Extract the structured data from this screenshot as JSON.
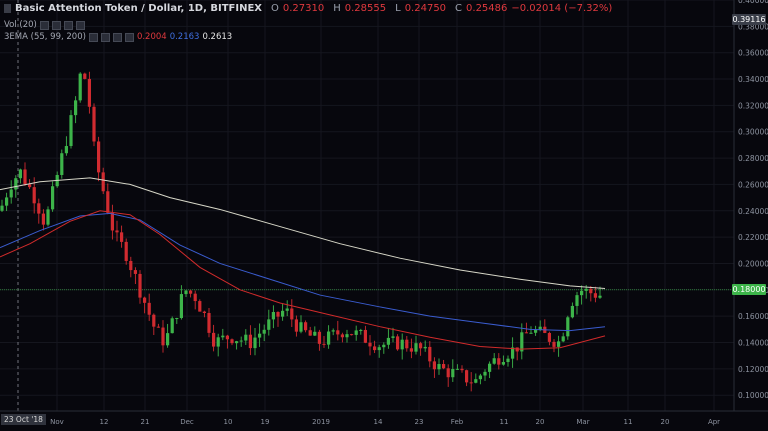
{
  "header": {
    "title": "Basic Attention Token / Dollar, 1D, BITFINEX",
    "ohlc": [
      {
        "key": "O",
        "value": "0.27310"
      },
      {
        "key": "H",
        "value": "0.28555"
      },
      {
        "key": "L",
        "value": "0.24750"
      },
      {
        "key": "C",
        "value": "0.25486"
      },
      {
        "key": "",
        "value": "−0.02014 (−7.32%)"
      }
    ]
  },
  "indicators": {
    "vol_label": "Vol (20)",
    "ema_label": "3EMA (55, 99, 200)",
    "ema_values": [
      "0.2004",
      "0.2163",
      "0.2613"
    ]
  },
  "colors": {
    "background": "#07070d",
    "up": "#3db44a",
    "down": "#d12b30",
    "ema55": "#d12b2b",
    "ema99": "#3a5ccf",
    "ema200": "#d7d7c8",
    "last_price_line": "#3db44a"
  },
  "crosshair_date": "23 Oct '18",
  "price_badges": {
    "top": "0.39116",
    "last": "0.18000"
  },
  "chart_data": {
    "type": "candlestick",
    "x_ticks": [
      "Nov",
      "12",
      "21",
      "Dec",
      "10",
      "19",
      "2019",
      "14",
      "23",
      "Feb",
      "11",
      "20",
      "Mar",
      "11",
      "20",
      "Apr"
    ],
    "y_ticks": [
      "0.10000",
      "0.12000",
      "0.14000",
      "0.16000",
      "0.18000",
      "0.20000",
      "0.22000",
      "0.24000",
      "0.26000",
      "0.28000",
      "0.30000",
      "0.32000",
      "0.34000",
      "0.36000",
      "0.38000",
      "0.40000"
    ],
    "ylim": [
      0.088,
      0.4
    ],
    "ohlc_sample": [
      0.2731,
      0.28555,
      0.2475,
      0.25486
    ],
    "ema200_points": [
      [
        0,
        0.256
      ],
      [
        40,
        0.262
      ],
      [
        90,
        0.265
      ],
      [
        130,
        0.26
      ],
      [
        170,
        0.25
      ],
      [
        220,
        0.241
      ],
      [
        280,
        0.228
      ],
      [
        340,
        0.215
      ],
      [
        400,
        0.204
      ],
      [
        460,
        0.195
      ],
      [
        520,
        0.188
      ],
      [
        570,
        0.183
      ],
      [
        605,
        0.181
      ]
    ],
    "ema99_points": [
      [
        0,
        0.212
      ],
      [
        40,
        0.225
      ],
      [
        80,
        0.236
      ],
      [
        110,
        0.238
      ],
      [
        140,
        0.233
      ],
      [
        180,
        0.214
      ],
      [
        220,
        0.2
      ],
      [
        270,
        0.188
      ],
      [
        320,
        0.176
      ],
      [
        380,
        0.167
      ],
      [
        430,
        0.16
      ],
      [
        480,
        0.155
      ],
      [
        530,
        0.15
      ],
      [
        570,
        0.149
      ],
      [
        605,
        0.152
      ]
    ],
    "ema55_points": [
      [
        0,
        0.205
      ],
      [
        30,
        0.215
      ],
      [
        70,
        0.232
      ],
      [
        100,
        0.24
      ],
      [
        130,
        0.237
      ],
      [
        160,
        0.222
      ],
      [
        200,
        0.197
      ],
      [
        240,
        0.18
      ],
      [
        280,
        0.17
      ],
      [
        330,
        0.161
      ],
      [
        380,
        0.152
      ],
      [
        430,
        0.144
      ],
      [
        480,
        0.137
      ],
      [
        520,
        0.135
      ],
      [
        560,
        0.136
      ],
      [
        605,
        0.145
      ]
    ]
  }
}
